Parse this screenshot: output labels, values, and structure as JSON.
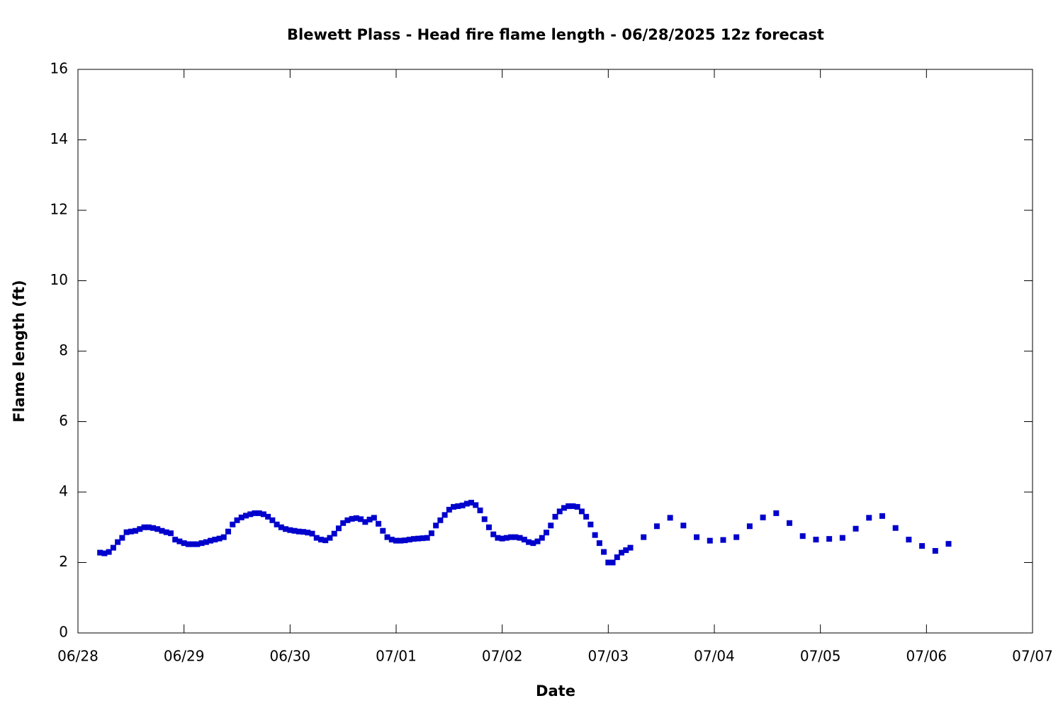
{
  "chart_data": {
    "type": "scatter",
    "title": "Blewett Plass - Head fire flame length - 06/28/2025 12z forecast",
    "x_label": "Date",
    "y_label": "Flame length (ft)",
    "color": "#0000cc",
    "xlim": [
      0,
      216
    ],
    "xticks": [
      {
        "value": 0,
        "label": "06/28"
      },
      {
        "value": 24,
        "label": "06/29"
      },
      {
        "value": 48,
        "label": "06/30"
      },
      {
        "value": 72,
        "label": "07/01"
      },
      {
        "value": 96,
        "label": "07/02"
      },
      {
        "value": 120,
        "label": "07/03"
      },
      {
        "value": 144,
        "label": "07/04"
      },
      {
        "value": 168,
        "label": "07/05"
      },
      {
        "value": 192,
        "label": "07/06"
      },
      {
        "value": 216,
        "label": "07/07"
      }
    ],
    "ylim": [
      0,
      16
    ],
    "yticks": [
      0,
      2,
      4,
      6,
      8,
      10,
      12,
      14,
      16
    ],
    "grid": false,
    "x": [
      5,
      6,
      7,
      8,
      9,
      10,
      11,
      12,
      13,
      14,
      15,
      16,
      17,
      18,
      19,
      20,
      21,
      22,
      23,
      24,
      25,
      26,
      27,
      28,
      29,
      30,
      31,
      32,
      33,
      34,
      35,
      36,
      37,
      38,
      39,
      40,
      41,
      42,
      43,
      44,
      45,
      46,
      47,
      48,
      49,
      50,
      51,
      52,
      53,
      54,
      55,
      56,
      57,
      58,
      59,
      60,
      61,
      62,
      63,
      64,
      65,
      66,
      67,
      68,
      69,
      70,
      71,
      72,
      73,
      74,
      75,
      76,
      77,
      78,
      79,
      80,
      81,
      82,
      83,
      84,
      85,
      86,
      87,
      88,
      89,
      90,
      91,
      92,
      93,
      94,
      95,
      96,
      97,
      98,
      99,
      100,
      101,
      102,
      103,
      104,
      105,
      106,
      107,
      108,
      109,
      110,
      111,
      112,
      113,
      114,
      115,
      116,
      117,
      118,
      119,
      120,
      121,
      122,
      123,
      124,
      125,
      128,
      131,
      134,
      137,
      140,
      143,
      146,
      149,
      152,
      155,
      158,
      161,
      164,
      167,
      170,
      173,
      176,
      179,
      182,
      185,
      188,
      191,
      194,
      197
    ],
    "values": [
      2.28,
      2.26,
      2.3,
      2.42,
      2.58,
      2.7,
      2.86,
      2.88,
      2.9,
      2.95,
      3.0,
      3.0,
      2.98,
      2.95,
      2.9,
      2.86,
      2.83,
      2.65,
      2.6,
      2.55,
      2.52,
      2.52,
      2.52,
      2.55,
      2.58,
      2.62,
      2.65,
      2.68,
      2.72,
      2.88,
      3.08,
      3.2,
      3.28,
      3.33,
      3.37,
      3.4,
      3.4,
      3.37,
      3.3,
      3.2,
      3.08,
      3.0,
      2.95,
      2.92,
      2.9,
      2.88,
      2.87,
      2.85,
      2.82,
      2.7,
      2.65,
      2.63,
      2.7,
      2.82,
      2.97,
      3.12,
      3.2,
      3.24,
      3.26,
      3.23,
      3.15,
      3.22,
      3.27,
      3.1,
      2.9,
      2.72,
      2.65,
      2.62,
      2.62,
      2.63,
      2.65,
      2.67,
      2.68,
      2.69,
      2.7,
      2.83,
      3.05,
      3.2,
      3.35,
      3.5,
      3.58,
      3.6,
      3.62,
      3.67,
      3.7,
      3.63,
      3.48,
      3.23,
      3.0,
      2.8,
      2.7,
      2.68,
      2.7,
      2.72,
      2.72,
      2.7,
      2.65,
      2.58,
      2.55,
      2.6,
      2.7,
      2.85,
      3.05,
      3.3,
      3.45,
      3.55,
      3.6,
      3.6,
      3.58,
      3.45,
      3.3,
      3.08,
      2.78,
      2.55,
      2.3,
      2.0,
      2.0,
      2.15,
      2.28,
      2.35,
      2.42,
      2.72,
      3.03,
      3.27,
      3.05,
      2.72,
      2.62,
      2.64,
      2.72,
      3.03,
      3.28,
      3.4,
      3.12,
      2.75,
      2.65,
      2.67,
      2.7,
      2.96,
      3.27,
      3.32,
      2.98,
      2.65,
      2.47,
      2.33,
      2.53
    ]
  }
}
